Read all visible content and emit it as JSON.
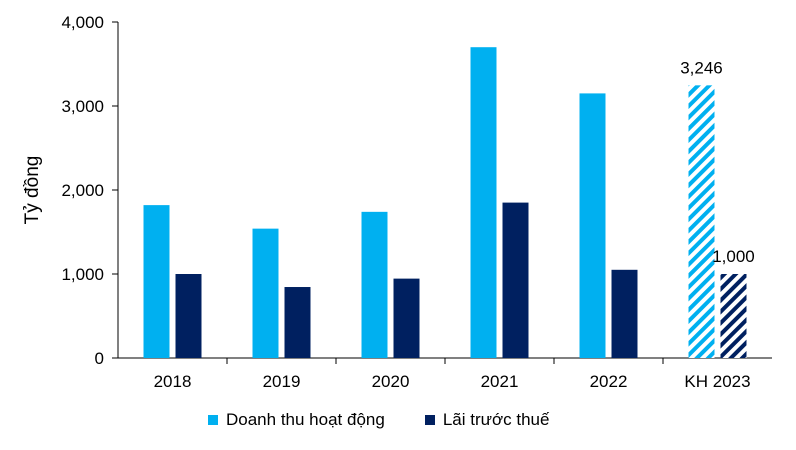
{
  "chart_data": {
    "type": "bar",
    "ylabel": "Tỷ đồng",
    "ylim": [
      0,
      4000
    ],
    "yticks": [
      "0",
      "1,000",
      "2,000",
      "3,000",
      "4,000"
    ],
    "categories": [
      "2018",
      "2019",
      "2020",
      "2021",
      "2022",
      "KH 2023"
    ],
    "series": [
      {
        "name": "Doanh thu hoạt động",
        "color": "#00b0f0",
        "values": [
          1820,
          1540,
          1740,
          3700,
          3150,
          3246
        ]
      },
      {
        "name": "Lãi trước thuế",
        "color": "#002060",
        "values": [
          1000,
          845,
          945,
          1850,
          1050,
          1000
        ]
      }
    ],
    "hatched_category": "KH 2023",
    "data_labels": {
      "KH 2023": [
        "3,246",
        "1,000"
      ]
    },
    "grid": false,
    "legend_position": "bottom"
  }
}
